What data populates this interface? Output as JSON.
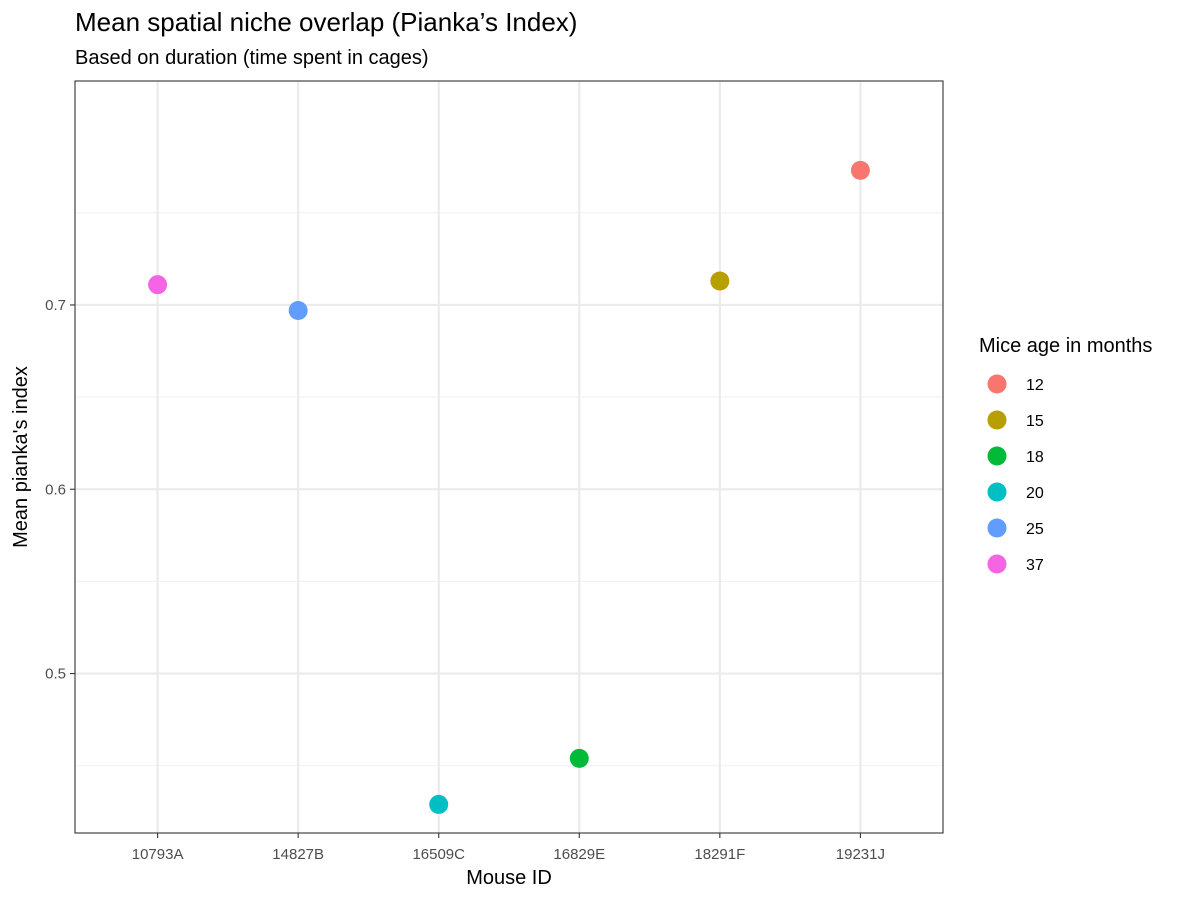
{
  "chart_data": {
    "type": "scatter",
    "title": "Mean spatial niche overlap (Pianka’s Index)",
    "subtitle": "Based on duration (time spent in cages)",
    "xlabel": "Mouse ID",
    "ylabel": "Mean pianka's index",
    "categories": [
      "10793A",
      "14827B",
      "16509C",
      "16829E",
      "18291F",
      "19231J"
    ],
    "points": [
      {
        "x": "10793A",
        "y": 0.711,
        "age": "37"
      },
      {
        "x": "14827B",
        "y": 0.697,
        "age": "25"
      },
      {
        "x": "16509C",
        "y": 0.429,
        "age": "20"
      },
      {
        "x": "16829E",
        "y": 0.454,
        "age": "18"
      },
      {
        "x": "18291F",
        "y": 0.713,
        "age": "15"
      },
      {
        "x": "19231J",
        "y": 0.773,
        "age": "12"
      }
    ],
    "ylim": [
      0.4135,
      0.8215
    ],
    "yticks": [
      0.5,
      0.6,
      0.7
    ],
    "yticks_labels": [
      "0.5",
      "0.6",
      "0.7"
    ],
    "grid": true,
    "legend": {
      "title": "Mice age in months",
      "placement": "right",
      "entries": [
        {
          "label": "12",
          "color": "#F8766D"
        },
        {
          "label": "15",
          "color": "#B79F00"
        },
        {
          "label": "18",
          "color": "#00BA38"
        },
        {
          "label": "20",
          "color": "#00BFC4"
        },
        {
          "label": "25",
          "color": "#619CFF"
        },
        {
          "label": "37",
          "color": "#F564E3"
        }
      ]
    }
  }
}
